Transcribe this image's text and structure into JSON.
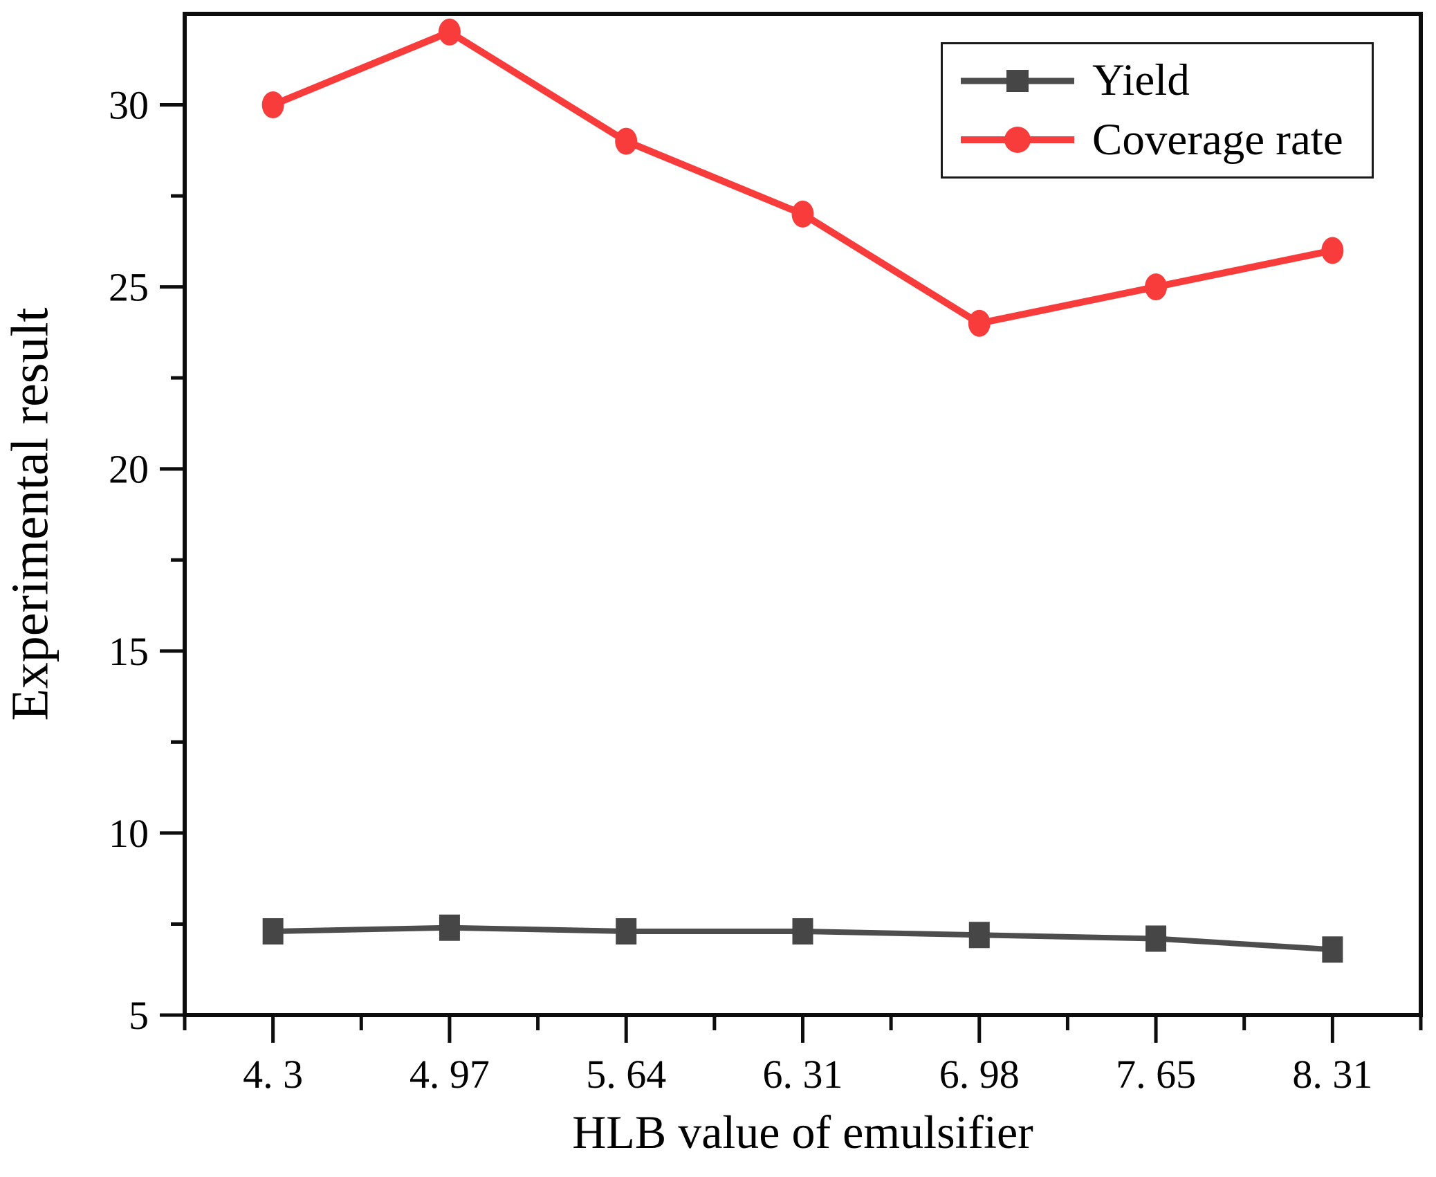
{
  "figure": {
    "background": "#ffffff"
  },
  "chart_data": {
    "type": "line",
    "title": "",
    "xlabel": "HLB value of emulsifier",
    "ylabel": "Experimental result",
    "categories": [
      "4. 3",
      "4. 97",
      "5. 64",
      "6. 31",
      "6. 98",
      "7. 65",
      "8. 31"
    ],
    "category_values": [
      4.3,
      4.97,
      5.64,
      6.31,
      6.98,
      7.65,
      8.31
    ],
    "series": [
      {
        "name": "Yield",
        "marker": "square",
        "color": "#4d4d4d",
        "marker_fill": "#464646",
        "values": [
          7.3,
          7.4,
          7.3,
          7.3,
          7.2,
          7.1,
          6.8
        ]
      },
      {
        "name": "Coverage rate",
        "marker": "circle",
        "color": "#f83c3c",
        "marker_fill": "#f83c3c",
        "values": [
          30,
          32,
          29,
          27,
          24,
          25,
          26
        ]
      }
    ],
    "ylim": [
      5,
      32.5
    ],
    "y_major_ticks": [
      30,
      25,
      20,
      15,
      10,
      5
    ],
    "y_tick_labels": [
      "30",
      "25",
      "20",
      "15",
      "10",
      "5"
    ],
    "y_minor_ticks": [
      27.5,
      22.5,
      17.5,
      12.5,
      7.5
    ],
    "grid": false,
    "legend": {
      "position": "top-right"
    },
    "axis_color": "#0d0d0d",
    "text_color": "#000000"
  }
}
